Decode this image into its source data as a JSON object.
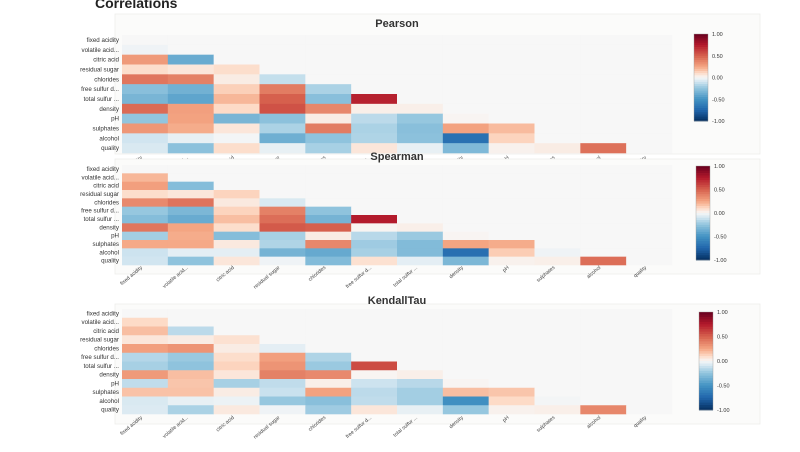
{
  "page": {
    "title": "Correlations"
  },
  "chart_data": [
    {
      "type": "heatmap",
      "title": "Pearson",
      "labels": [
        "fixed acidity",
        "volatile acid...",
        "citric acid",
        "residual sugar",
        "chlorides",
        "free sulfur d...",
        "total sulfur ...",
        "density",
        "pH",
        "sulphates",
        "alcohol",
        "quality"
      ],
      "x_labels": [
        "fixed acidity",
        "volatile acid...",
        "citric acid",
        "residual sugar",
        "chlorides",
        "free sulfur d...",
        "total sulfur ...",
        "density",
        "pH",
        "sulphates",
        "alcohol",
        "quality"
      ],
      "matrix": [
        [
          0,
          0,
          0,
          0,
          0,
          0,
          0,
          0,
          0,
          0,
          0,
          0
        ],
        [
          -0.02,
          0,
          0,
          0,
          0,
          0,
          0,
          0,
          0,
          0,
          0,
          0
        ],
        [
          0.29,
          -0.38,
          0,
          0,
          0,
          0,
          0,
          0,
          0,
          0,
          0,
          0
        ],
        [
          0.09,
          0.06,
          0.09,
          0,
          0,
          0,
          0,
          0,
          0,
          0,
          0,
          0
        ],
        [
          0.42,
          0.38,
          0.04,
          -0.13,
          0,
          0,
          0,
          0,
          0,
          0,
          0,
          0
        ],
        [
          -0.28,
          -0.35,
          0.13,
          0.4,
          -0.19,
          0,
          0,
          0,
          0,
          0,
          0,
          0
        ],
        [
          -0.33,
          -0.41,
          0.2,
          0.5,
          -0.28,
          0.72,
          0,
          0,
          0,
          0,
          0,
          0
        ],
        [
          0.46,
          0.27,
          0.1,
          0.55,
          0.36,
          0.03,
          0.03,
          0,
          0,
          0,
          0,
          0
        ],
        [
          -0.25,
          0.26,
          -0.33,
          -0.27,
          0.04,
          -0.15,
          -0.24,
          0.01,
          0,
          0,
          0,
          0
        ],
        [
          0.3,
          0.23,
          0.06,
          -0.19,
          0.4,
          -0.19,
          -0.28,
          0.26,
          0.19,
          0,
          0,
          0
        ],
        [
          -0.1,
          -0.04,
          -0.01,
          -0.36,
          -0.26,
          -0.18,
          -0.27,
          -0.69,
          0.12,
          -0.0,
          0,
          0
        ],
        [
          -0.08,
          -0.27,
          0.09,
          -0.04,
          -0.2,
          0.06,
          -0.04,
          -0.31,
          0.02,
          0.04,
          0.44,
          0
        ]
      ],
      "colorbar": {
        "min": -1.0,
        "max": 1.0,
        "ticks": [
          "1.00",
          "0.50",
          "0.00",
          "-0.50",
          "-1.00"
        ]
      }
    },
    {
      "type": "heatmap",
      "title": "Spearman",
      "labels": [
        "fixed acidity",
        "volatile acid...",
        "citric acid",
        "residual sugar",
        "chlorides",
        "free sulfur d...",
        "total sulfur ...",
        "density",
        "pH",
        "sulphates",
        "alcohol",
        "quality"
      ],
      "x_labels": [
        "fixed acidity",
        "volatile acid...",
        "citric acid",
        "residual sugar",
        "chlorides",
        "free sulfur d...",
        "total sulfur ...",
        "density",
        "pH",
        "sulphates",
        "alcohol",
        "quality"
      ],
      "matrix": [
        [
          0,
          0,
          0,
          0,
          0,
          0,
          0,
          0,
          0,
          0,
          0,
          0
        ],
        [
          0.2,
          0,
          0,
          0,
          0,
          0,
          0,
          0,
          0,
          0,
          0,
          0
        ],
        [
          0.27,
          -0.29,
          0,
          0,
          0,
          0,
          0,
          0,
          0,
          0,
          0,
          0
        ],
        [
          0.09,
          0.06,
          0.12,
          0,
          0,
          0,
          0,
          0,
          0,
          0,
          0,
          0
        ],
        [
          0.35,
          0.43,
          0.05,
          -0.08,
          0,
          0,
          0,
          0,
          0,
          0,
          0,
          0
        ],
        [
          -0.24,
          -0.32,
          0.12,
          0.38,
          -0.26,
          0,
          0,
          0,
          0,
          0,
          0,
          0
        ],
        [
          -0.29,
          -0.38,
          0.18,
          0.45,
          -0.34,
          0.74,
          0,
          0,
          0,
          0,
          0,
          0
        ],
        [
          0.42,
          0.25,
          0.09,
          0.52,
          0.5,
          0.01,
          0.03,
          0,
          0,
          0,
          0,
          0
        ],
        [
          -0.21,
          0.23,
          -0.29,
          -0.2,
          0.04,
          -0.16,
          -0.23,
          0.01,
          0,
          0,
          0,
          0
        ],
        [
          0.24,
          0.24,
          0.05,
          -0.18,
          0.36,
          -0.22,
          -0.3,
          0.25,
          0.23,
          0,
          0,
          0
        ],
        [
          -0.11,
          -0.05,
          -0.05,
          -0.34,
          -0.39,
          -0.2,
          -0.3,
          -0.7,
          0.14,
          -0.02,
          0,
          0
        ],
        [
          -0.1,
          -0.26,
          0.06,
          -0.02,
          -0.3,
          0.08,
          -0.05,
          -0.32,
          0.02,
          0.03,
          0.45,
          0
        ]
      ],
      "colorbar": {
        "min": -1.0,
        "max": 1.0,
        "ticks": [
          "1.00",
          "0.50",
          "0.00",
          "-0.50",
          "-1.00"
        ]
      }
    },
    {
      "type": "heatmap",
      "title": "KendallTau",
      "labels": [
        "fixed acidity",
        "volatile acid...",
        "citric acid",
        "residual sugar",
        "chlorides",
        "free sulfur d...",
        "total sulfur ...",
        "density",
        "pH",
        "sulphates",
        "alcohol",
        "quality"
      ],
      "x_labels": [
        "fixed acidity",
        "volatile acid...",
        "citric acid",
        "residual sugar",
        "chlorides",
        "free sulfur d...",
        "total sulfur ...",
        "density",
        "pH",
        "sulphates",
        "alcohol",
        "quality"
      ],
      "matrix": [
        [
          0,
          0,
          0,
          0,
          0,
          0,
          0,
          0,
          0,
          0,
          0,
          0
        ],
        [
          0.1,
          0,
          0,
          0,
          0,
          0,
          0,
          0,
          0,
          0,
          0,
          0
        ],
        [
          0.18,
          -0.15,
          0,
          0,
          0,
          0,
          0,
          0,
          0,
          0,
          0,
          0
        ],
        [
          0.06,
          0.04,
          0.08,
          0,
          0,
          0,
          0,
          0,
          0,
          0,
          0,
          0
        ],
        [
          0.27,
          0.31,
          0.04,
          -0.05,
          0,
          0,
          0,
          0,
          0,
          0,
          0,
          0
        ],
        [
          -0.17,
          -0.23,
          0.09,
          0.27,
          -0.18,
          0,
          0,
          0,
          0,
          0,
          0,
          0
        ],
        [
          -0.2,
          -0.26,
          0.12,
          0.31,
          -0.23,
          0.57,
          0,
          0,
          0,
          0,
          0,
          0
        ],
        [
          0.29,
          0.18,
          0.06,
          0.38,
          0.35,
          0.01,
          0.03,
          0,
          0,
          0,
          0,
          0
        ],
        [
          -0.14,
          0.16,
          -0.2,
          -0.14,
          0.03,
          -0.11,
          -0.16,
          0.01,
          0,
          0,
          0,
          0
        ],
        [
          0.17,
          0.17,
          0.04,
          -0.12,
          0.26,
          -0.15,
          -0.21,
          0.18,
          0.16,
          0,
          0,
          0
        ],
        [
          -0.08,
          -0.04,
          -0.03,
          -0.24,
          -0.28,
          -0.14,
          -0.21,
          -0.52,
          0.1,
          -0.01,
          0,
          0
        ],
        [
          -0.07,
          -0.19,
          0.05,
          -0.02,
          -0.22,
          0.06,
          -0.04,
          -0.24,
          0.02,
          0.03,
          0.36,
          0
        ]
      ],
      "colorbar": {
        "min": -1.0,
        "max": 1.0,
        "ticks": [
          "1.00",
          "0.50",
          "0.00",
          "-0.50",
          "-1.00"
        ]
      }
    }
  ]
}
